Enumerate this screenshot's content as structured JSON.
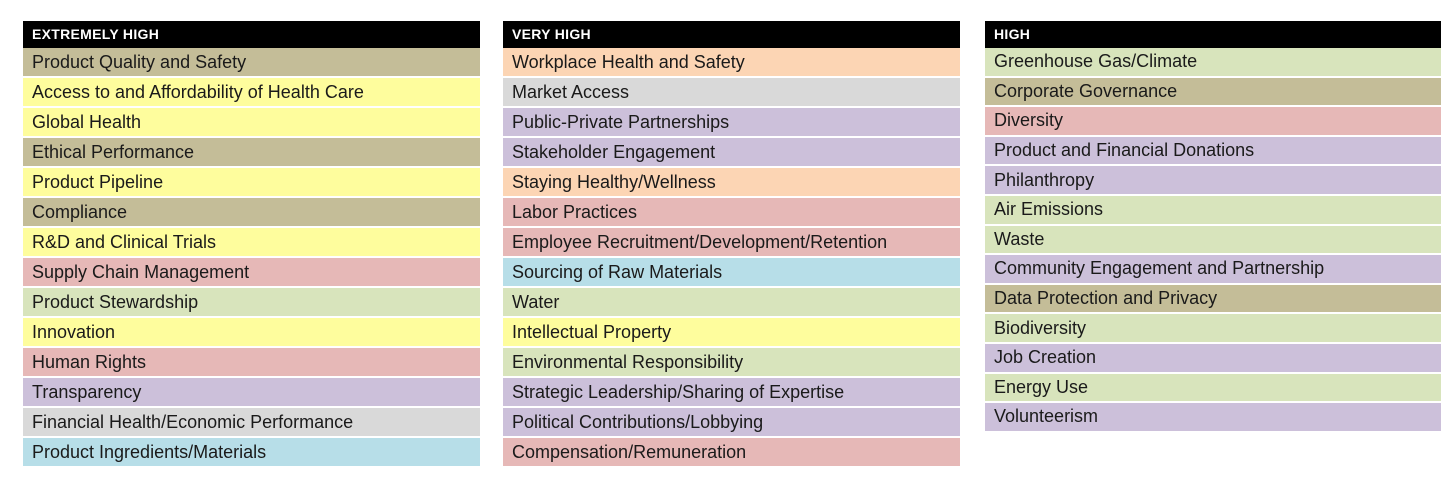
{
  "colors": {
    "tan": "#c4bd98",
    "yellow": "#fefd9d",
    "pink": "#e6b8b7",
    "green": "#d8e4bc",
    "lavender": "#ccc0da",
    "grey": "#d9d9d9",
    "blue": "#b7dee8",
    "peach": "#fcd5b4",
    "header": "#000000"
  },
  "columns": [
    {
      "title": "EXTREMELY HIGH",
      "items": [
        {
          "label": "Product Quality and Safety",
          "color": "tan"
        },
        {
          "label": "Access to and Affordability of Health Care",
          "color": "yellow"
        },
        {
          "label": "Global Health",
          "color": "yellow"
        },
        {
          "label": "Ethical Performance",
          "color": "tan"
        },
        {
          "label": "Product Pipeline",
          "color": "yellow"
        },
        {
          "label": "Compliance",
          "color": "tan"
        },
        {
          "label": "R&D and Clinical Trials",
          "color": "yellow"
        },
        {
          "label": "Supply Chain Management",
          "color": "pink"
        },
        {
          "label": "Product Stewardship",
          "color": "green"
        },
        {
          "label": "Innovation",
          "color": "yellow"
        },
        {
          "label": "Human Rights",
          "color": "pink"
        },
        {
          "label": "Transparency",
          "color": "lavender"
        },
        {
          "label": "Financial Health/Economic Performance",
          "color": "grey"
        },
        {
          "label": "Product Ingredients/Materials",
          "color": "blue"
        }
      ]
    },
    {
      "title": "VERY HIGH",
      "items": [
        {
          "label": "Workplace Health and Safety",
          "color": "peach"
        },
        {
          "label": "Market Access",
          "color": "grey"
        },
        {
          "label": "Public-Private Partnerships",
          "color": "lavender"
        },
        {
          "label": "Stakeholder Engagement",
          "color": "lavender"
        },
        {
          "label": "Staying Healthy/Wellness",
          "color": "peach"
        },
        {
          "label": "Labor Practices",
          "color": "pink"
        },
        {
          "label": "Employee Recruitment/Development/Retention",
          "color": "pink"
        },
        {
          "label": "Sourcing of Raw Materials",
          "color": "blue"
        },
        {
          "label": "Water",
          "color": "green"
        },
        {
          "label": "Intellectual Property",
          "color": "yellow"
        },
        {
          "label": "Environmental Responsibility",
          "color": "green"
        },
        {
          "label": "Strategic Leadership/Sharing of Expertise",
          "color": "lavender"
        },
        {
          "label": "Political Contributions/Lobbying",
          "color": "lavender"
        },
        {
          "label": "Compensation/Remuneration",
          "color": "pink"
        }
      ]
    },
    {
      "title": "HIGH",
      "items": [
        {
          "label": "Greenhouse Gas/Climate",
          "color": "green"
        },
        {
          "label": "Corporate Governance",
          "color": "tan"
        },
        {
          "label": "Diversity",
          "color": "pink"
        },
        {
          "label": "Product and Financial Donations",
          "color": "lavender"
        },
        {
          "label": "Philanthropy",
          "color": "lavender"
        },
        {
          "label": "Air Emissions",
          "color": "green"
        },
        {
          "label": "Waste",
          "color": "green"
        },
        {
          "label": "Community Engagement and Partnership",
          "color": "lavender"
        },
        {
          "label": "Data Protection and Privacy",
          "color": "tan"
        },
        {
          "label": "Biodiversity",
          "color": "green"
        },
        {
          "label": "Job Creation",
          "color": "lavender"
        },
        {
          "label": "Energy Use",
          "color": "green"
        },
        {
          "label": "Volunteerism",
          "color": "lavender"
        }
      ]
    }
  ]
}
